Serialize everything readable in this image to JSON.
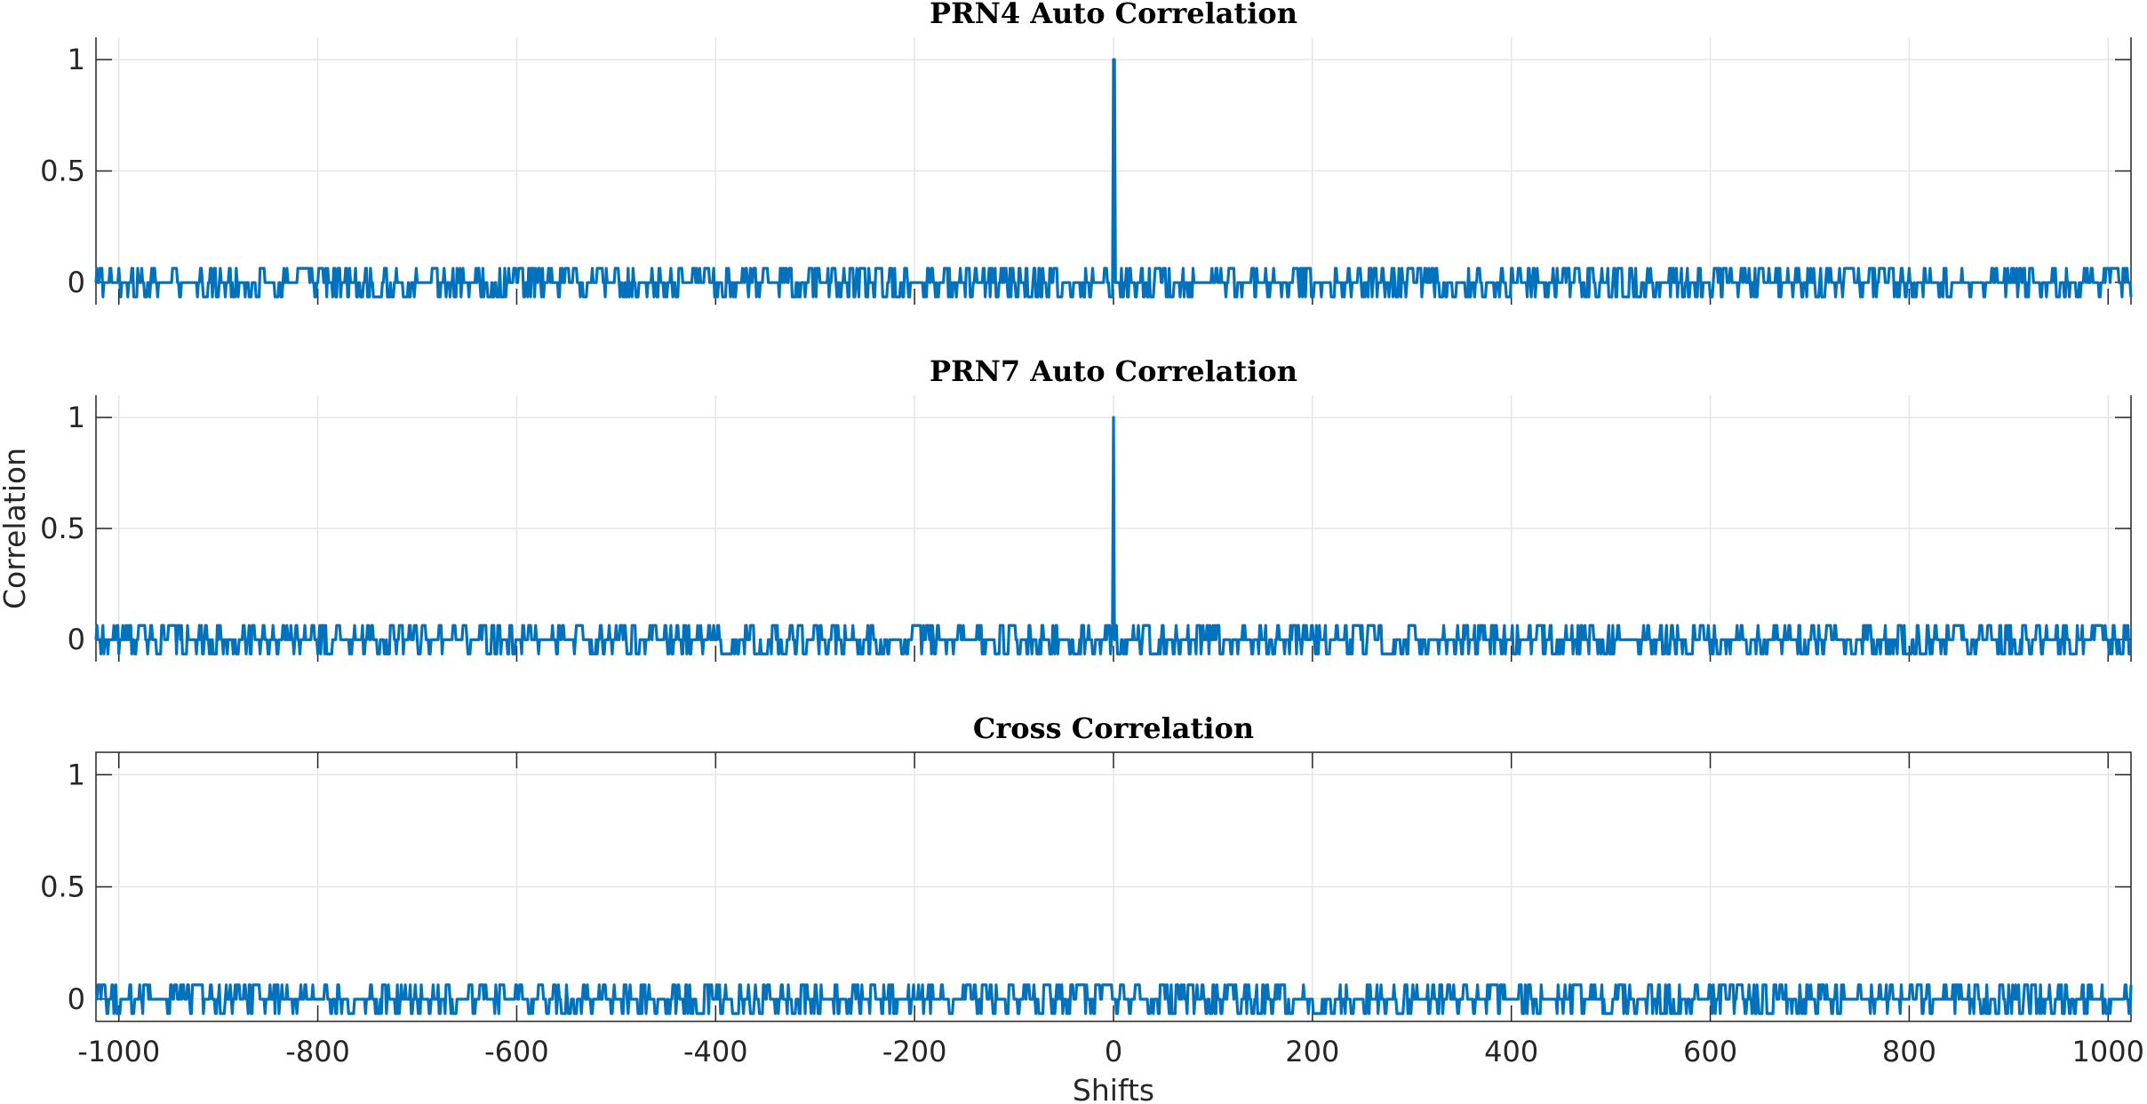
{
  "chart_data": {
    "type": "line",
    "shared_xlabel": "Shifts",
    "shared_ylabel": "Correlation",
    "line_color": "#0072BD",
    "sequence_length": 1023,
    "xlim": [
      -1023,
      1023
    ],
    "ylim": [
      -0.1,
      1.1
    ],
    "xticks": [
      -1000,
      -800,
      -600,
      -400,
      -200,
      0,
      200,
      400,
      600,
      800,
      1000
    ],
    "yticks": [
      0,
      0.5,
      1
    ],
    "grid": true,
    "panels": [
      {
        "title": "PRN4 Auto Correlation",
        "ylabel": "",
        "show_xticklabels": false,
        "series": [
          {
            "kind": "autocorrelation",
            "peak": {
              "x": 0,
              "y": 1
            },
            "sidelobe_levels": [
              -0.065,
              -0.001,
              0.063
            ],
            "seed": 4
          }
        ]
      },
      {
        "title": "PRN7 Auto Correlation",
        "ylabel": "Correlation",
        "show_xticklabels": false,
        "series": [
          {
            "kind": "autocorrelation",
            "peak": {
              "x": 0,
              "y": 1
            },
            "sidelobe_levels": [
              -0.065,
              -0.001,
              0.063
            ],
            "seed": 7
          }
        ]
      },
      {
        "title": "Cross Correlation",
        "ylabel": "",
        "show_xticklabels": true,
        "series": [
          {
            "kind": "crosscorrelation",
            "levels": [
              -0.065,
              -0.001,
              0.063
            ],
            "seed": 47
          }
        ]
      }
    ]
  }
}
